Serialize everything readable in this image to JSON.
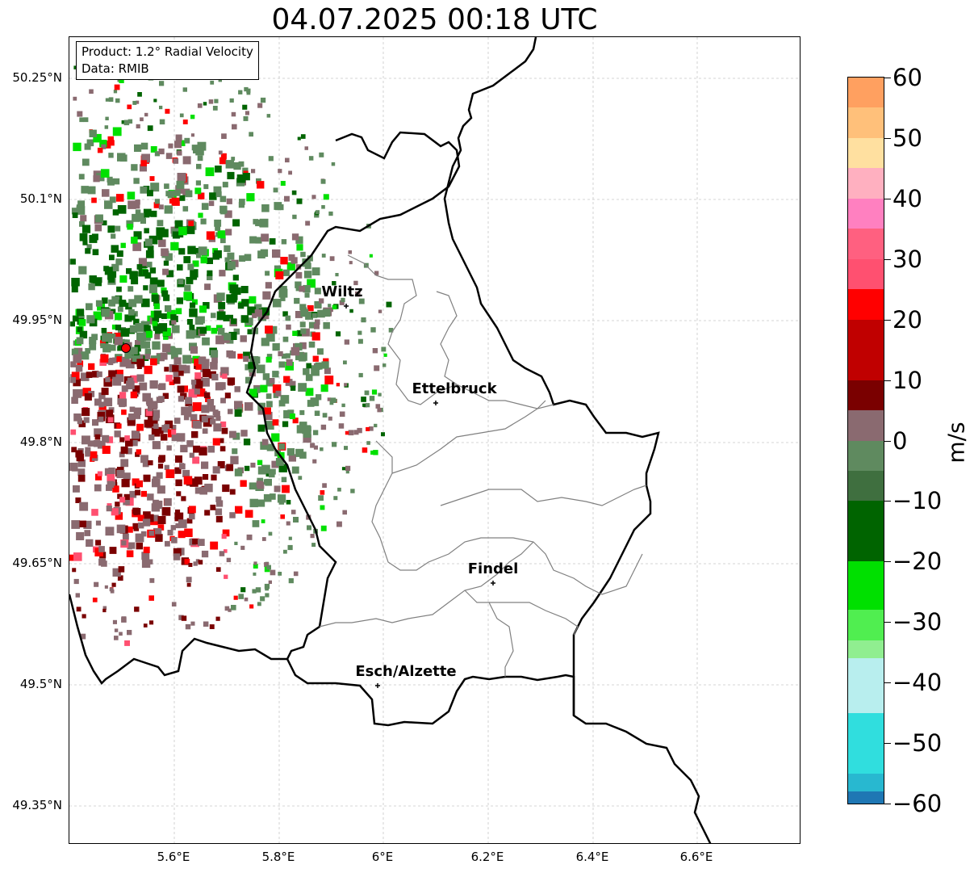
{
  "title": "04.07.2025 00:18 UTC",
  "info": {
    "line1": "Product: 1.2° Radial Velocity",
    "line2": "Data: RMIB"
  },
  "lat_labels": [
    "50.25°N",
    "50.1°N",
    "49.95°N",
    "49.8°N",
    "49.65°N",
    "49.5°N",
    "49.35°N"
  ],
  "lon_labels": [
    "5.6°E",
    "5.8°E",
    "6°E",
    "6.2°E",
    "6.4°E",
    "6.6°E"
  ],
  "cities": [
    {
      "name": "Wiltz"
    },
    {
      "name": "Ettelbruck"
    },
    {
      "name": "Findel"
    },
    {
      "name": "Esch/Alzette"
    }
  ],
  "colorbar": {
    "unit": "m/s",
    "ticks": [
      "60",
      "50",
      "40",
      "30",
      "20",
      "10",
      "0",
      "−10",
      "−20",
      "−30",
      "−40",
      "−50",
      "−60"
    ],
    "range": [
      -60,
      60
    ],
    "colors": {
      "blue": "#1f77b4",
      "cyan": "#30dede",
      "lightcyan": "#b8eeee",
      "lightgreen": "#90ee90",
      "green": "#00e000",
      "darkgreen": "#006400",
      "graygreen": "#5f8a5f",
      "graymauve": "#8a6a70",
      "darkred": "#7a0000",
      "red": "#ff0000",
      "pink": "#ff5070",
      "lightpink": "#ffb0c0",
      "peach": "#ffe0a0",
      "orange": "#ffa060"
    }
  },
  "radar_site_color": "#ff0000"
}
